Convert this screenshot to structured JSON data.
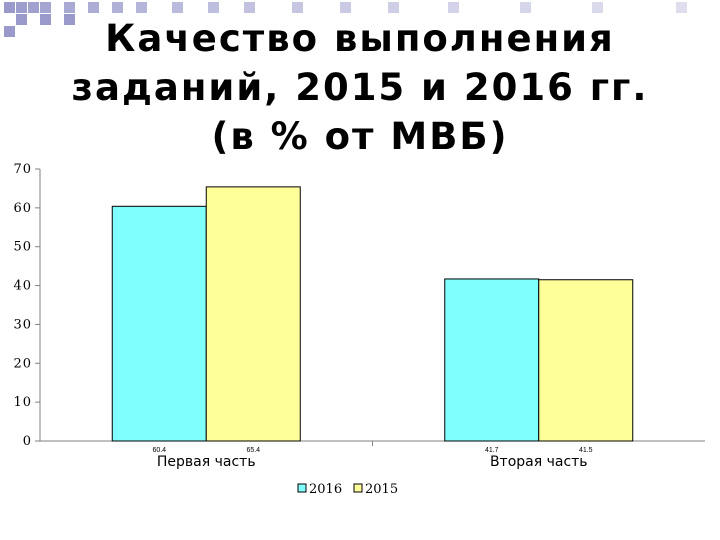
{
  "slide": {
    "title_lines": [
      "Качество выполнения",
      "заданий, 2015 и 2016 гг.",
      "(в % от МВБ)"
    ]
  },
  "colors": {
    "series_2016": "#80FFFF",
    "series_2015": "#FFFF99",
    "decoration": "#9999CC"
  },
  "chart_data": {
    "type": "bar",
    "categories": [
      "Первая часть",
      "Вторая часть"
    ],
    "series": [
      {
        "name": "2016",
        "values": [
          60.4,
          41.7
        ]
      },
      {
        "name": "2015",
        "values": [
          65.4,
          41.5
        ]
      }
    ],
    "data_labels": [
      [
        "60.4",
        "41.7"
      ],
      [
        "65.4",
        "41.5"
      ]
    ],
    "y_ticks": [
      "0",
      "10",
      "20",
      "30",
      "40",
      "50",
      "60",
      "70"
    ],
    "ylim": [
      0,
      70
    ],
    "legend": "bottom",
    "grid": false
  }
}
